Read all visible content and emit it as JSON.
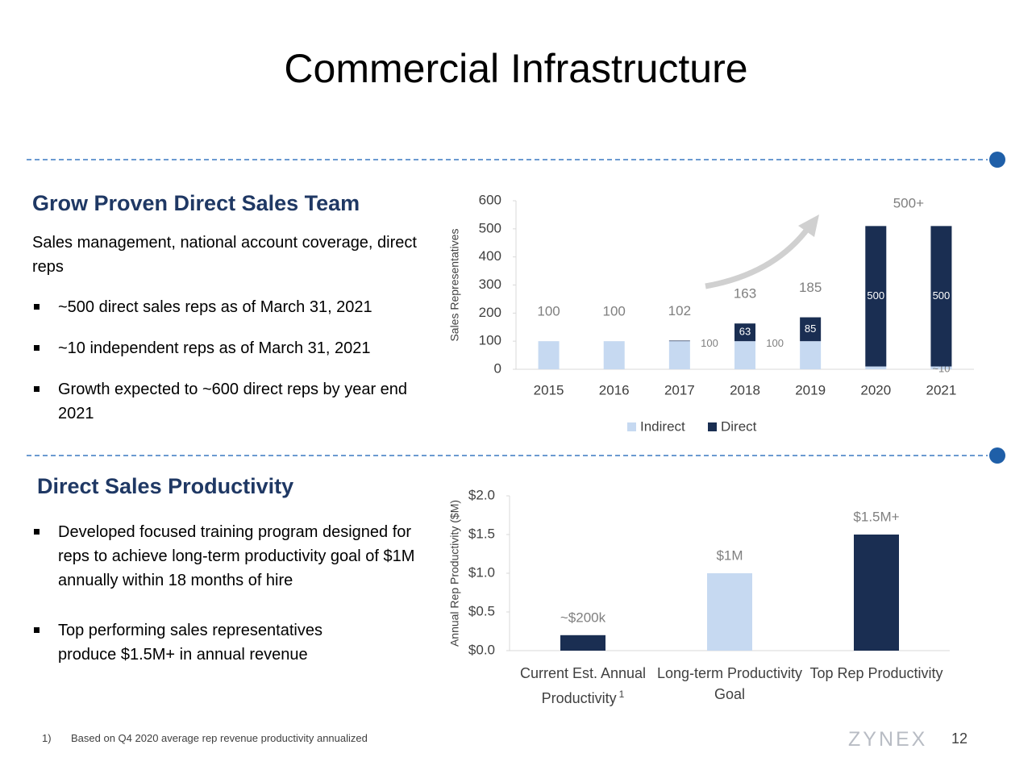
{
  "title": "Commercial Infrastructure",
  "sections": [
    {
      "heading": "Grow Proven Direct Sales Team",
      "intro": "Sales management, national account coverage, direct reps",
      "bullets": [
        "~500 direct sales reps as of March 31, 2021",
        "~10 independent reps as of March 31, 2021",
        "Growth expected to ~600 direct reps by year end 2021"
      ]
    },
    {
      "heading": "Direct Sales Productivity",
      "bullets": [
        "Developed focused training program designed for reps to achieve long-term productivity goal of $1M annually within 18 months of hire",
        "Top performing sales representatives produce $1.5M+ in annual revenue"
      ]
    }
  ],
  "chart_data": [
    {
      "type": "bar",
      "stacked": true,
      "ylabel": "Sales Representatives",
      "categories": [
        "2015",
        "2016",
        "2017",
        "2018",
        "2019",
        "2020",
        "2021"
      ],
      "series": [
        {
          "name": "Indirect",
          "color": "#c6d9f1",
          "values": [
            100,
            100,
            100,
            100,
            100,
            10,
            10
          ],
          "value_labels": [
            null,
            null,
            null,
            "100",
            "100",
            null,
            "~10"
          ]
        },
        {
          "name": "Direct",
          "color": "#1a2e52",
          "values": [
            0,
            0,
            2,
            63,
            85,
            500,
            500
          ],
          "value_labels": [
            null,
            null,
            null,
            "63",
            "85",
            "500",
            "500"
          ]
        }
      ],
      "total_labels": [
        "100",
        "100",
        "102",
        "163",
        "185",
        null,
        null
      ],
      "annotation": "500+",
      "ylim": [
        0,
        600
      ],
      "yticks": [
        0,
        100,
        200,
        300,
        400,
        500,
        600
      ],
      "legend": "bottom"
    },
    {
      "type": "bar",
      "ylabel": "Annual Rep Productivity ($M)",
      "categories": [
        "Current Est. Annual Productivity",
        "Long-term Productivity Goal",
        "Top Rep Productivity"
      ],
      "category_footnote": "1",
      "values": [
        0.2,
        1,
        1.5
      ],
      "value_labels": [
        "~$200k",
        "$1M",
        "$1.5M+"
      ],
      "colors": [
        "#1a2e52",
        "#c6d9f1",
        "#1a2e52"
      ],
      "ylim": [
        0,
        2
      ],
      "yticks": [
        {
          "value": 0,
          "label": "$0.0"
        },
        {
          "value": 0.5,
          "label": "$0.5"
        },
        {
          "value": 1,
          "label": "$1.0"
        },
        {
          "value": 1.5,
          "label": "$1.5"
        },
        {
          "value": 2,
          "label": "$2.0"
        }
      ]
    }
  ],
  "footnote": {
    "marker": "1)",
    "text": "Based on Q4 2020 average rep revenue productivity annualized"
  },
  "logo": "ZYNEX",
  "page_number": "12"
}
